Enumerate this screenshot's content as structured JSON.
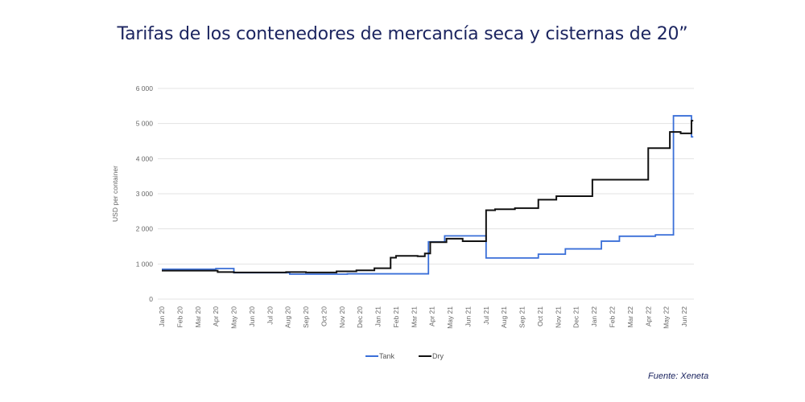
{
  "title": "Tarifas de los contenedores de mercancía seca y cisternas de 20”",
  "source": "Fuente: Xeneta",
  "chart_data": {
    "type": "line",
    "step": true,
    "title": "Tarifas de los contenedores de mercancía seca y cisternas de 20”",
    "xlabel": "",
    "ylabel": "USD per container",
    "ylim": [
      0,
      6000
    ],
    "yticks": [
      0,
      1000,
      2000,
      3000,
      4000,
      5000,
      6000
    ],
    "ytick_labels": [
      "0",
      "1 000",
      "2 000",
      "3 000",
      "4 000",
      "5 000",
      "6 000"
    ],
    "categories": [
      "Jan 20",
      "Feb 20",
      "Mar 20",
      "Apr 20",
      "May 20",
      "Jun 20",
      "Jul 20",
      "Aug 20",
      "Sep 20",
      "Oct 20",
      "Nov 20",
      "Dec 20",
      "Jan 21",
      "Feb 21",
      "Mar 21",
      "Apr 21",
      "May 21",
      "Jun 21",
      "Jul 21",
      "Aug 21",
      "Sep 21",
      "Oct 21",
      "Nov 21",
      "Dec 21",
      "Jan 22",
      "Feb 22",
      "Mar 22",
      "Apr 22",
      "May 22",
      "Jun 22"
    ],
    "x_unit": "month index from Jan 20",
    "grid": true,
    "legend_position": "bottom",
    "series": [
      {
        "name": "Tank",
        "color": "#3a6fd8",
        "points": [
          [
            0,
            850
          ],
          [
            3.0,
            870
          ],
          [
            4.0,
            750
          ],
          [
            7.1,
            710
          ],
          [
            10.3,
            720
          ],
          [
            14.8,
            1630
          ],
          [
            15.7,
            1800
          ],
          [
            18.0,
            1170
          ],
          [
            20.9,
            1280
          ],
          [
            22.4,
            1430
          ],
          [
            24.4,
            1650
          ],
          [
            25.4,
            1790
          ],
          [
            27.4,
            1830
          ],
          [
            28.4,
            5220
          ],
          [
            29.4,
            4620
          ],
          [
            29.5,
            4620
          ]
        ]
      },
      {
        "name": "Dry",
        "color": "#111111",
        "points": [
          [
            0,
            810
          ],
          [
            3.1,
            770
          ],
          [
            4.0,
            760
          ],
          [
            6.9,
            770
          ],
          [
            8.0,
            760
          ],
          [
            9.7,
            790
          ],
          [
            10.8,
            820
          ],
          [
            11.8,
            880
          ],
          [
            12.7,
            1180
          ],
          [
            13.0,
            1230
          ],
          [
            14.2,
            1220
          ],
          [
            14.6,
            1300
          ],
          [
            14.9,
            1620
          ],
          [
            15.8,
            1720
          ],
          [
            16.7,
            1650
          ],
          [
            18.0,
            2530
          ],
          [
            18.5,
            2560
          ],
          [
            19.6,
            2590
          ],
          [
            20.9,
            2830
          ],
          [
            21.9,
            2930
          ],
          [
            23.9,
            3400
          ],
          [
            27.0,
            4300
          ],
          [
            28.2,
            4760
          ],
          [
            28.8,
            4720
          ],
          [
            29.4,
            5080
          ],
          [
            29.5,
            5080
          ]
        ]
      }
    ]
  }
}
